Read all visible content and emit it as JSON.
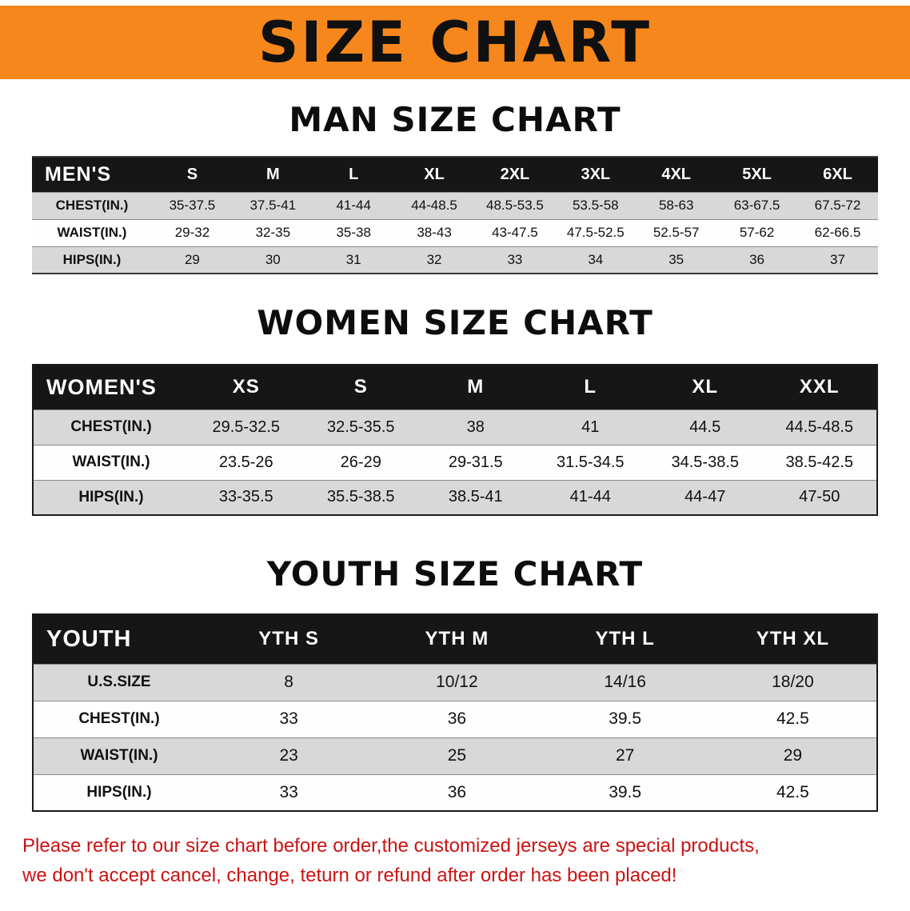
{
  "banner": {
    "title": "SIZE CHART"
  },
  "colors": {
    "banner_bg": "#f6871d",
    "table_header_bg": "#161616",
    "row_stripe": "#d8d8d8",
    "notice_text": "#cc1212"
  },
  "sections": [
    {
      "title": "MAN SIZE CHART",
      "corner": "MEN'S",
      "columns": [
        "S",
        "M",
        "L",
        "XL",
        "2XL",
        "3XL",
        "4XL",
        "5XL",
        "6XL"
      ],
      "rows": [
        {
          "label": "CHEST(IN.)",
          "values": [
            "35-37.5",
            "37.5-41",
            "41-44",
            "44-48.5",
            "48.5-53.5",
            "53.5-58",
            "58-63",
            "63-67.5",
            "67.5-72"
          ]
        },
        {
          "label": "WAIST(IN.)",
          "values": [
            "29-32",
            "32-35",
            "35-38",
            "38-43",
            "43-47.5",
            "47.5-52.5",
            "52.5-57",
            "57-62",
            "62-66.5"
          ]
        },
        {
          "label": "HIPS(IN.)",
          "values": [
            "29",
            "30",
            "31",
            "32",
            "33",
            "34",
            "35",
            "36",
            "37"
          ]
        }
      ]
    },
    {
      "title": "WOMEN SIZE CHART",
      "corner": "WOMEN'S",
      "columns": [
        "XS",
        "S",
        "M",
        "L",
        "XL",
        "XXL"
      ],
      "rows": [
        {
          "label": "CHEST(IN.)",
          "values": [
            "29.5-32.5",
            "32.5-35.5",
            "38",
            "41",
            "44.5",
            "44.5-48.5"
          ]
        },
        {
          "label": "WAIST(IN.)",
          "values": [
            "23.5-26",
            "26-29",
            "29-31.5",
            "31.5-34.5",
            "34.5-38.5",
            "38.5-42.5"
          ]
        },
        {
          "label": "HIPS(IN.)",
          "values": [
            "33-35.5",
            "35.5-38.5",
            "38.5-41",
            "41-44",
            "44-47",
            "47-50"
          ]
        }
      ]
    },
    {
      "title": "YOUTH SIZE CHART",
      "corner": "YOUTH",
      "columns": [
        "YTH S",
        "YTH M",
        "YTH L",
        "YTH XL"
      ],
      "rows": [
        {
          "label": "U.S.SIZE",
          "values": [
            "8",
            "10/12",
            "14/16",
            "18/20"
          ]
        },
        {
          "label": "CHEST(IN.)",
          "values": [
            "33",
            "36",
            "39.5",
            "42.5"
          ]
        },
        {
          "label": "WAIST(IN.)",
          "values": [
            "23",
            "25",
            "27",
            "29"
          ]
        },
        {
          "label": "HIPS(IN.)",
          "values": [
            "33",
            "36",
            "39.5",
            "42.5"
          ]
        }
      ]
    }
  ],
  "notice": {
    "line1": "Please refer to our size chart before order,the customized jerseys are special products,",
    "line2": "we don't accept cancel, change, teturn or refund after order has been placed!"
  }
}
